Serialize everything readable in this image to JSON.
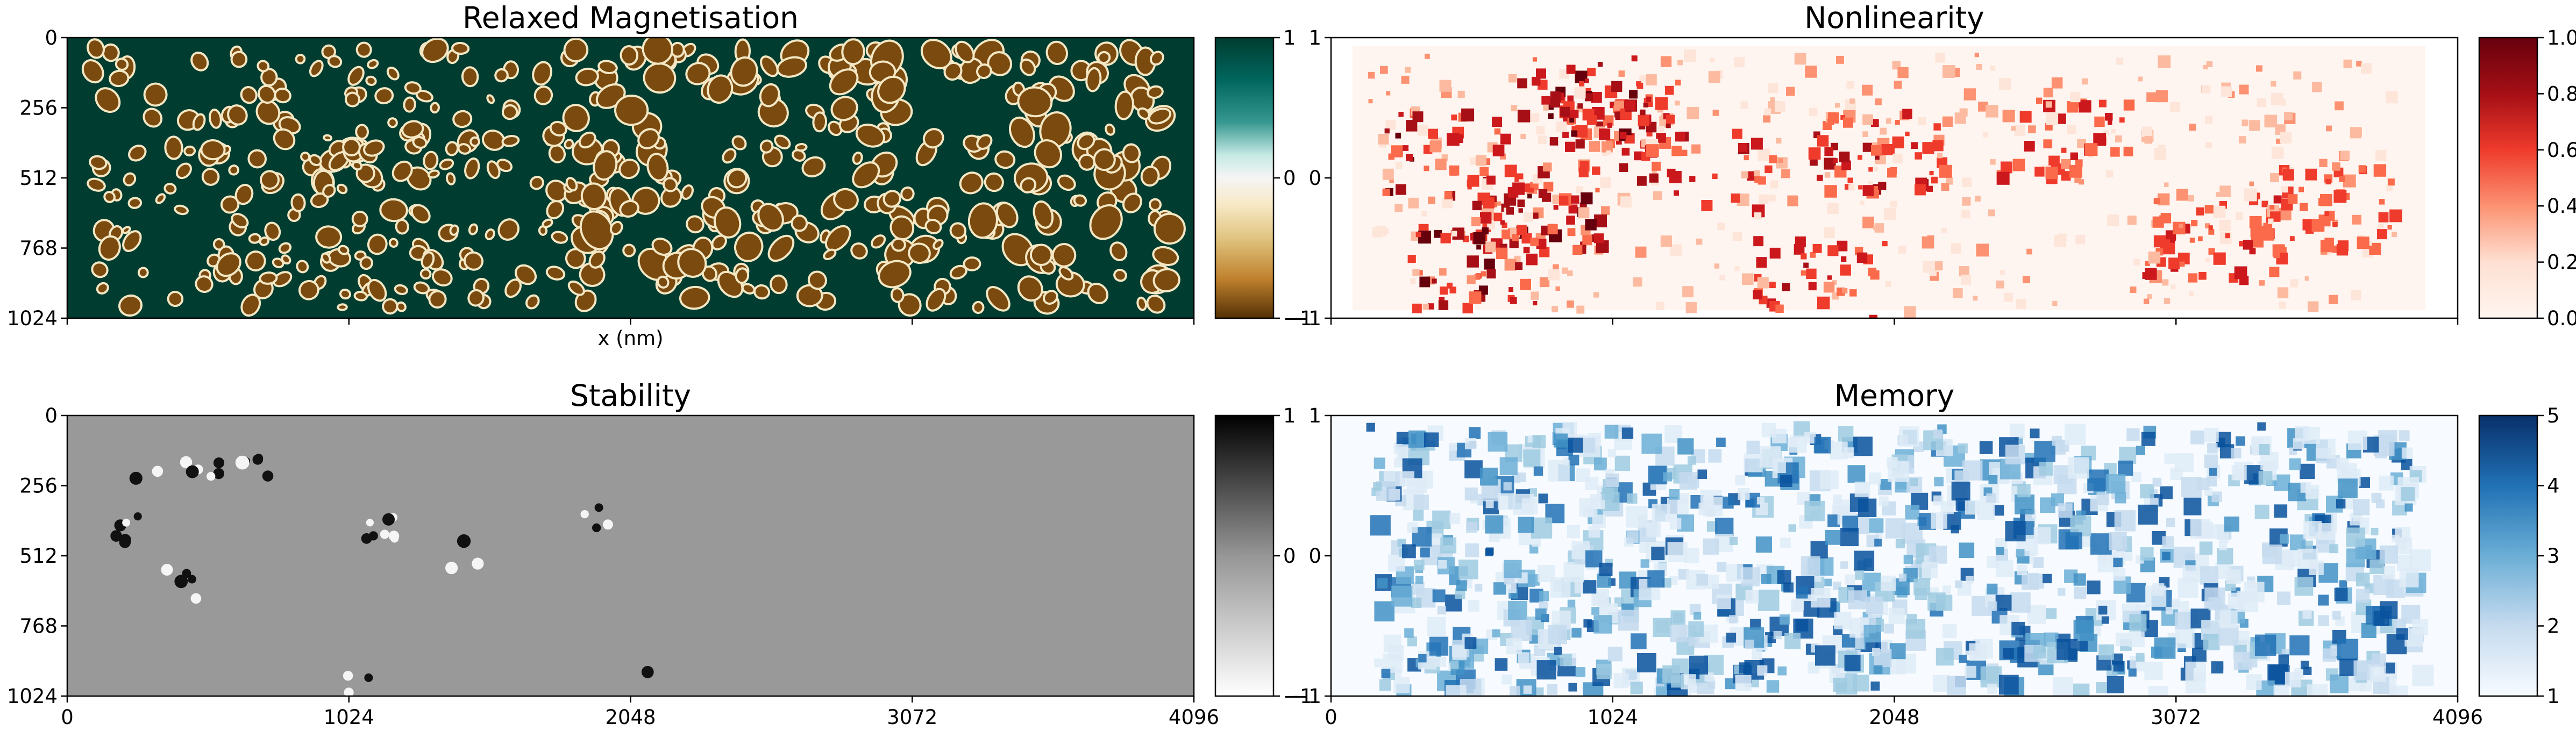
{
  "chart_data": [
    {
      "type": "heatmap",
      "title": "Relaxed Magnetisation",
      "xlabel": "x (nm)",
      "ylabel": "",
      "x_range": [
        0,
        4096
      ],
      "y_range": [
        0,
        1024
      ],
      "y_ticks": [
        "0",
        "256",
        "512",
        "768",
        "1024"
      ],
      "x_ticks": [],
      "colormap": "BrBG",
      "colorbar": {
        "range": [
          -1,
          1
        ],
        "ticks": [
          "1",
          "0",
          "−1"
        ]
      },
      "description_colors": {
        "background": "#003c30",
        "domain": "#7a4a0f",
        "edge": "#f3e7c4"
      }
    },
    {
      "type": "heatmap",
      "title": "Nonlinearity",
      "xlabel": "",
      "ylabel": "",
      "x_range": [
        0,
        4096
      ],
      "y_range": [
        -1,
        1
      ],
      "y_ticks": [
        "1",
        "0",
        "−1"
      ],
      "x_ticks": [],
      "colormap": "Reds",
      "colorbar": {
        "range": [
          0.0,
          1.0
        ],
        "ticks": [
          "1.0",
          "0.8",
          "0.6",
          "0.4",
          "0.2",
          "0.0"
        ]
      },
      "description_colors": {
        "low": "#fff5f0",
        "high": "#67000d"
      }
    },
    {
      "type": "heatmap",
      "title": "Stability",
      "xlabel": "",
      "ylabel": "",
      "x_range": [
        0,
        4096
      ],
      "y_range": [
        0,
        1024
      ],
      "y_ticks": [
        "0",
        "256",
        "512",
        "768",
        "1024"
      ],
      "x_ticks": [
        "0",
        "1024",
        "2048",
        "3072",
        "4096"
      ],
      "colormap": "Greys",
      "colorbar": {
        "range": [
          -1,
          1
        ],
        "ticks": [
          "1",
          "0",
          "−1"
        ]
      },
      "description_colors": {
        "background": "#999999"
      }
    },
    {
      "type": "heatmap",
      "title": "Memory",
      "xlabel": "",
      "ylabel": "",
      "x_range": [
        0,
        4096
      ],
      "y_range": [
        -1,
        1
      ],
      "y_ticks": [
        "1",
        "0",
        "−1"
      ],
      "x_ticks": [
        "0",
        "1024",
        "2048",
        "3072",
        "4096"
      ],
      "colormap": "Blues",
      "colorbar": {
        "range": [
          1,
          5
        ],
        "ticks": [
          "5",
          "4",
          "3",
          "2",
          "1"
        ]
      },
      "description_colors": {
        "low": "#f7fbff",
        "high": "#08306b"
      }
    }
  ]
}
